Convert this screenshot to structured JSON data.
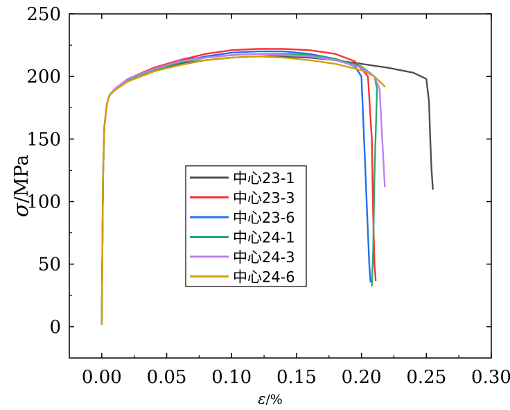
{
  "chart_data": {
    "type": "line",
    "xlabel_symbol": "ε",
    "xlabel_unit": "/%",
    "ylabel_symbol": "σ",
    "ylabel_unit": "/MPa",
    "xlim": [
      -0.025,
      0.3
    ],
    "ylim": [
      -25,
      250
    ],
    "x_ticks": [
      0.0,
      0.05,
      0.1,
      0.15,
      0.2,
      0.25,
      0.3
    ],
    "x_tick_labels": [
      "0.00",
      "0.05",
      "0.10",
      "0.15",
      "0.20",
      "0.25",
      "0.30"
    ],
    "y_ticks": [
      0,
      50,
      100,
      150,
      200,
      250
    ],
    "y_tick_labels": [
      "0",
      "50",
      "100",
      "150",
      "200",
      "250"
    ],
    "grid": false,
    "legend_position": "center-left",
    "series": [
      {
        "name": "中心23-1",
        "color": "#505050",
        "x": [
          0,
          0.001,
          0.002,
          0.004,
          0.006,
          0.01,
          0.02,
          0.04,
          0.06,
          0.08,
          0.1,
          0.12,
          0.14,
          0.16,
          0.18,
          0.2,
          0.22,
          0.24,
          0.25,
          0.252,
          0.253,
          0.254,
          0.255
        ],
        "y": [
          2,
          120,
          160,
          178,
          185,
          189,
          196,
          204,
          210,
          213,
          215,
          216,
          216,
          215,
          213,
          210,
          207,
          203,
          198,
          180,
          150,
          125,
          110
        ]
      },
      {
        "name": "中心23-3",
        "color": "#ff3030",
        "x": [
          0,
          0.001,
          0.002,
          0.004,
          0.006,
          0.01,
          0.02,
          0.04,
          0.06,
          0.08,
          0.1,
          0.12,
          0.14,
          0.16,
          0.18,
          0.195,
          0.205,
          0.208,
          0.209,
          0.21,
          0.211
        ],
        "y": [
          2,
          120,
          160,
          178,
          185,
          190,
          198,
          207,
          213,
          218,
          221,
          222,
          222,
          221,
          218,
          212,
          200,
          150,
          90,
          50,
          37
        ]
      },
      {
        "name": "中心23-6",
        "color": "#2070f0",
        "x": [
          0,
          0.001,
          0.002,
          0.004,
          0.006,
          0.01,
          0.02,
          0.04,
          0.06,
          0.08,
          0.1,
          0.12,
          0.14,
          0.16,
          0.18,
          0.195,
          0.2,
          0.202,
          0.204,
          0.206,
          0.207
        ],
        "y": [
          2,
          120,
          160,
          178,
          185,
          190,
          198,
          206,
          212,
          216,
          219,
          220,
          220,
          218,
          214,
          208,
          200,
          150,
          100,
          50,
          36
        ]
      },
      {
        "name": "中心24-1",
        "color": "#20b070",
        "x": [
          0,
          0.001,
          0.002,
          0.004,
          0.006,
          0.01,
          0.02,
          0.04,
          0.06,
          0.08,
          0.1,
          0.12,
          0.14,
          0.16,
          0.18,
          0.2,
          0.21,
          0.212,
          0.21,
          0.209,
          0.208
        ],
        "y": [
          2,
          120,
          160,
          178,
          185,
          189,
          197,
          205,
          211,
          215,
          217,
          218,
          218,
          217,
          214,
          208,
          200,
          190,
          120,
          60,
          33
        ]
      },
      {
        "name": "中心24-3",
        "color": "#c080f0",
        "x": [
          0,
          0.001,
          0.002,
          0.004,
          0.006,
          0.01,
          0.02,
          0.04,
          0.06,
          0.08,
          0.1,
          0.12,
          0.14,
          0.16,
          0.18,
          0.2,
          0.21,
          0.214,
          0.216,
          0.218
        ],
        "y": [
          2,
          120,
          160,
          178,
          185,
          190,
          198,
          206,
          212,
          215,
          217,
          218,
          217,
          216,
          213,
          207,
          200,
          190,
          150,
          112
        ]
      },
      {
        "name": "中心24-6",
        "color": "#d4a000",
        "x": [
          0,
          0.001,
          0.002,
          0.004,
          0.006,
          0.01,
          0.02,
          0.04,
          0.06,
          0.08,
          0.1,
          0.12,
          0.14,
          0.16,
          0.18,
          0.2,
          0.21,
          0.218
        ],
        "y": [
          2,
          120,
          160,
          178,
          185,
          189,
          196,
          204,
          209,
          213,
          215,
          216,
          215,
          213,
          210,
          205,
          200,
          192
        ]
      }
    ]
  }
}
